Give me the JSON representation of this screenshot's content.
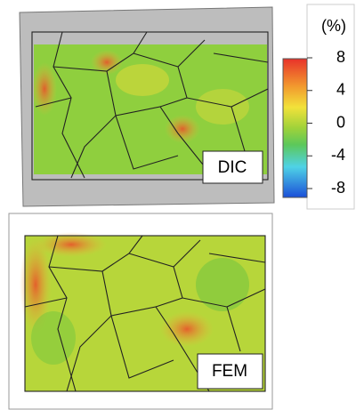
{
  "panels": [
    {
      "label": "DIC"
    },
    {
      "label": "FEM"
    }
  ],
  "colorbar": {
    "unit": "(%)",
    "ticks": [
      8,
      4,
      0,
      -4,
      -8
    ]
  }
}
